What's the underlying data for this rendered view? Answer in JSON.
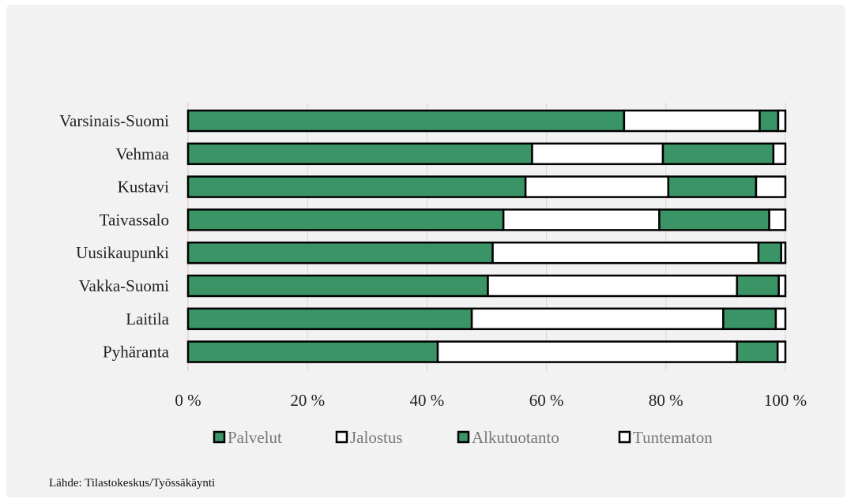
{
  "source_note": "Lähde: Tilastokeskus/Työssäkäynti",
  "chart_data": {
    "type": "bar",
    "orientation": "horizontal",
    "stacked": true,
    "categories": [
      "Varsinais-Suomi",
      "Vehmaa",
      "Kustavi",
      "Taivassalo",
      "Uusikaupunki",
      "Vakka-Suomi",
      "Laitila",
      "Pyhäranta"
    ],
    "series": [
      {
        "name": "Palvelut",
        "color": "#3a9466",
        "values": [
          73,
          57.6,
          56.5,
          52.8,
          51,
          50.2,
          47.5,
          41.8
        ]
      },
      {
        "name": "Jalostus",
        "color": "#ffffff",
        "values": [
          22.7,
          21.9,
          23.9,
          26.1,
          44.5,
          41.7,
          42.1,
          50.1
        ]
      },
      {
        "name": "Alkutuotanto",
        "color": "#3a9466",
        "values": [
          3.1,
          18.5,
          14.7,
          18.4,
          3.8,
          7.0,
          8.8,
          6.8
        ]
      },
      {
        "name": "Tuntematon",
        "color": "#ffffff",
        "values": [
          1.2,
          2.0,
          4.9,
          2.7,
          0.7,
          1.1,
          1.6,
          1.3
        ]
      }
    ],
    "xlim": [
      0,
      100
    ],
    "x_ticks": [
      "0 %",
      "20 %",
      "40 %",
      "60 %",
      "80 %",
      "100 %"
    ],
    "x_tick_values": [
      0,
      20,
      40,
      60,
      80,
      100
    ],
    "grid": true,
    "legend_position": "bottom"
  }
}
